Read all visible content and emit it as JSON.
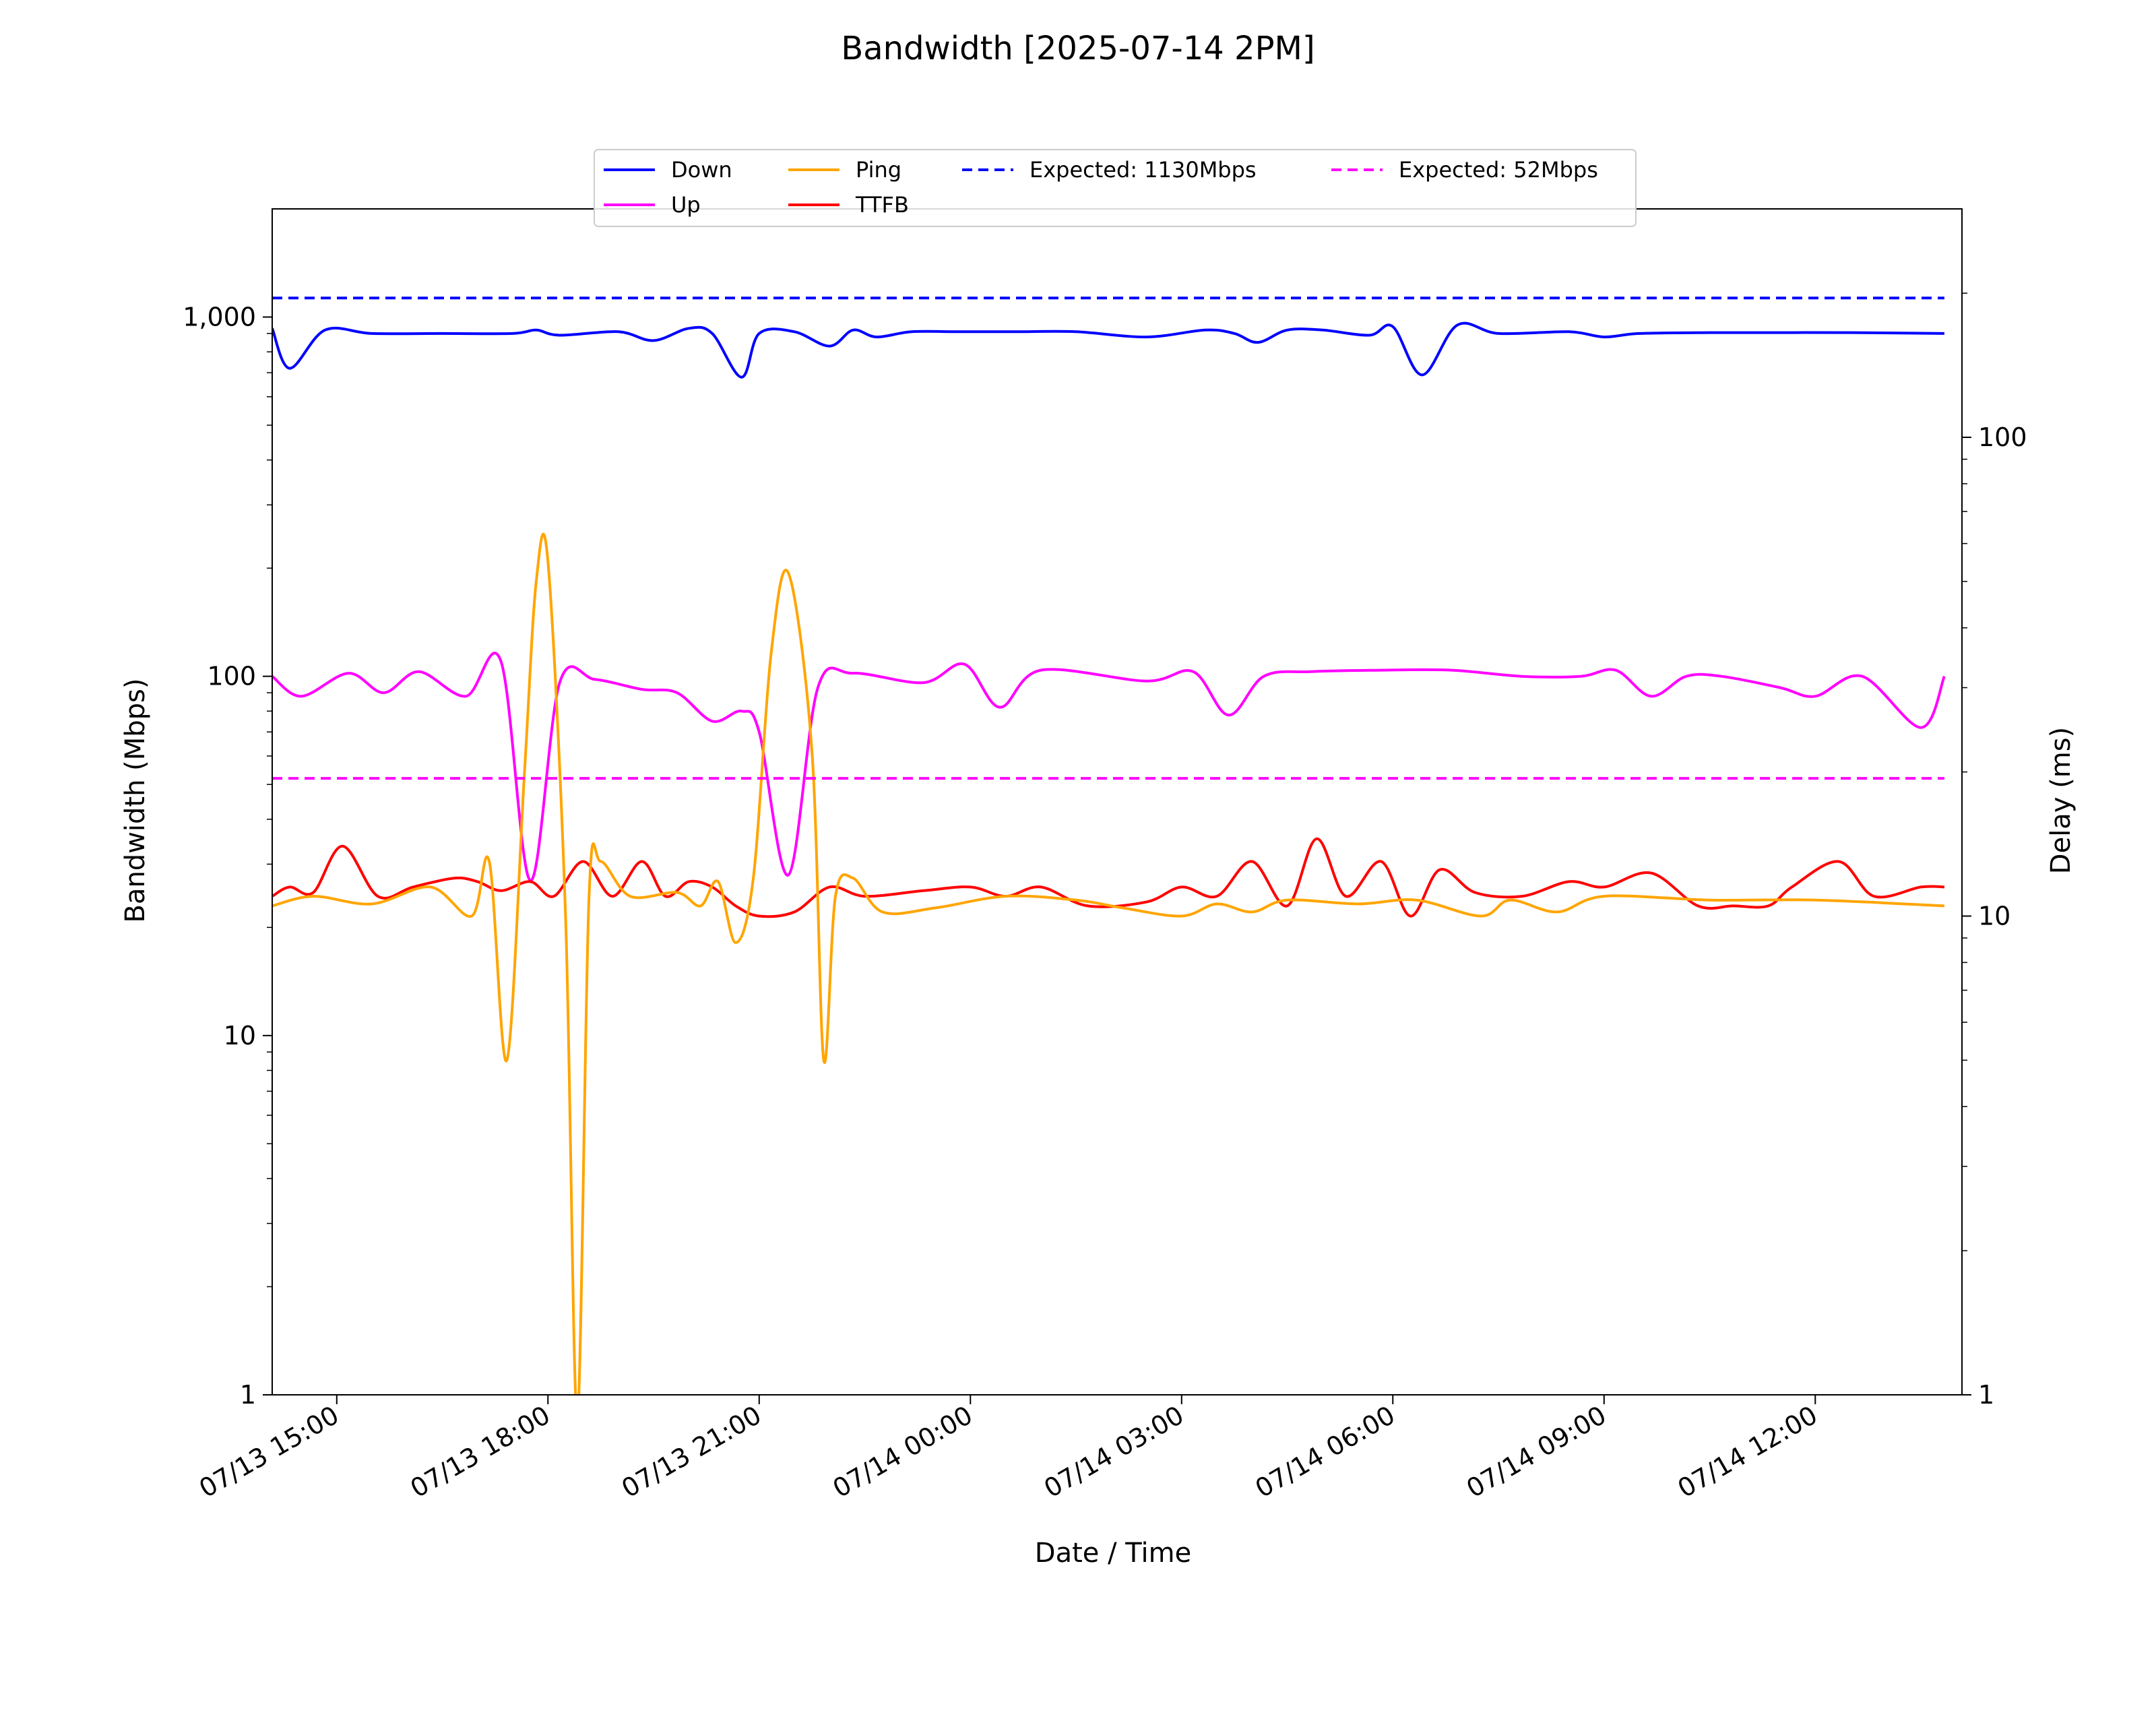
{
  "chart_data": {
    "type": "line",
    "title": "Bandwidth [2025-07-14 2PM]",
    "xlabel": "Date / Time",
    "ylabel": "Bandwidth (Mbps)",
    "y2label": "Delay (ms)",
    "x_ticks": [
      "07/13 15:00",
      "07/13 18:00",
      "07/13 21:00",
      "07/14 00:00",
      "07/14 03:00",
      "07/14 06:00",
      "07/14 09:00",
      "07/14 12:00"
    ],
    "xlim": [
      "2025-07-13 14:05",
      "2025-07-14 14:05"
    ],
    "ylim": [
      1,
      2000
    ],
    "y_scale": "log",
    "y_ticks": [
      {
        "value": 1,
        "label": "1"
      },
      {
        "value": 10,
        "label": "10"
      },
      {
        "value": 100,
        "label": "100"
      },
      {
        "value": 1000,
        "label": "1,000"
      }
    ],
    "y2lim": [
      1,
      300
    ],
    "y2_scale": "log",
    "y2_ticks": [
      {
        "value": 1,
        "label": "1"
      },
      {
        "value": 10,
        "label": "10"
      },
      {
        "value": 100,
        "label": "100"
      }
    ],
    "legend_position": "top-center",
    "series": [
      {
        "name": "Down",
        "axis": "left",
        "color": "#0000ff",
        "style": "solid",
        "x": [
          "07/13 14:05",
          "07/13 14:20",
          "07/13 14:50",
          "07/13 15:30",
          "07/13 16:30",
          "07/13 17:30",
          "07/13 17:50",
          "07/13 18:10",
          "07/13 19:00",
          "07/13 19:30",
          "07/13 20:00",
          "07/13 20:20",
          "07/13 20:45",
          "07/13 21:00",
          "07/13 21:30",
          "07/13 22:00",
          "07/13 22:20",
          "07/13 22:40",
          "07/13 23:10",
          "07/13 23:50",
          "07/14 00:40",
          "07/14 01:30",
          "07/14 02:30",
          "07/14 03:20",
          "07/14 03:45",
          "07/14 04:05",
          "07/14 04:30",
          "07/14 05:00",
          "07/14 05:40",
          "07/14 06:00",
          "07/14 06:25",
          "07/14 06:55",
          "07/14 07:30",
          "07/14 08:30",
          "07/14 09:00",
          "07/14 09:30",
          "07/14 10:30",
          "07/14 11:30",
          "07/14 12:30",
          "07/14 13:50"
        ],
        "values": [
          930,
          720,
          920,
          900,
          900,
          900,
          920,
          890,
          910,
          860,
          930,
          900,
          680,
          900,
          910,
          830,
          920,
          880,
          910,
          910,
          910,
          910,
          880,
          920,
          900,
          850,
          920,
          920,
          890,
          940,
          690,
          950,
          900,
          910,
          880,
          900,
          905,
          905,
          905,
          900
        ]
      },
      {
        "name": "Up",
        "axis": "left",
        "color": "#ff00ff",
        "style": "solid",
        "x": [
          "07/13 14:05",
          "07/13 14:30",
          "07/13 15:10",
          "07/13 15:40",
          "07/13 16:10",
          "07/13 16:50",
          "07/13 17:20",
          "07/13 17:45",
          "07/13 18:10",
          "07/13 18:40",
          "07/13 19:20",
          "07/13 19:50",
          "07/13 20:20",
          "07/13 20:45",
          "07/13 21:00",
          "07/13 21:25",
          "07/13 21:50",
          "07/13 22:20",
          "07/13 23:20",
          "07/13 23:55",
          "07/14 00:25",
          "07/14 01:00",
          "07/14 02:30",
          "07/14 03:10",
          "07/14 03:40",
          "07/14 04:10",
          "07/14 04:50",
          "07/14 05:50",
          "07/14 06:50",
          "07/14 07:50",
          "07/14 08:40",
          "07/14 09:10",
          "07/14 09:40",
          "07/14 10:10",
          "07/14 10:40",
          "07/14 11:30",
          "07/14 12:00",
          "07/14 12:40",
          "07/14 13:30",
          "07/14 13:50"
        ],
        "values": [
          100,
          88,
          102,
          90,
          103,
          88,
          110,
          27,
          96,
          98,
          92,
          90,
          75,
          80,
          70,
          28,
          93,
          102,
          96,
          108,
          82,
          104,
          97,
          103,
          78,
          100,
          103,
          104,
          104,
          100,
          100,
          104,
          88,
          100,
          100,
          93,
          88,
          100,
          72,
          100
        ]
      },
      {
        "name": "Ping",
        "axis": "right",
        "color": "#ffa500",
        "style": "solid",
        "x": [
          "07/13 14:05",
          "07/13 14:40",
          "07/13 15:30",
          "07/13 16:20",
          "07/13 16:55",
          "07/13 17:10",
          "07/13 17:25",
          "07/13 17:40",
          "07/13 17:50",
          "07/13 18:00",
          "07/13 18:15",
          "07/13 18:25",
          "07/13 18:35",
          "07/13 18:45",
          "07/13 19:10",
          "07/13 19:50",
          "07/13 20:10",
          "07/13 20:25",
          "07/13 20:40",
          "07/13 20:55",
          "07/13 21:10",
          "07/13 21:25",
          "07/13 21:45",
          "07/13 21:55",
          "07/13 22:05",
          "07/13 22:20",
          "07/13 22:45",
          "07/13 23:30",
          "07/14 00:30",
          "07/14 01:30",
          "07/14 02:10",
          "07/14 03:00",
          "07/14 03:30",
          "07/14 04:00",
          "07/14 04:30",
          "07/14 05:30",
          "07/14 06:20",
          "07/14 07:15",
          "07/14 07:40",
          "07/14 08:20",
          "07/14 09:00",
          "07/14 10:30",
          "07/14 12:00",
          "07/14 13:50"
        ],
        "values": [
          10.5,
          11,
          10.6,
          11.5,
          10,
          13,
          5,
          20,
          50,
          55,
          10,
          0.9,
          11,
          13,
          11,
          11.2,
          10.5,
          11.8,
          8.8,
          12,
          35,
          52,
          22,
          5,
          11,
          12,
          10.2,
          10.4,
          11,
          10.8,
          10.4,
          10,
          10.6,
          10.2,
          10.8,
          10.6,
          10.8,
          10,
          10.8,
          10.2,
          11,
          10.8,
          10.8,
          10.5
        ]
      },
      {
        "name": "TTFB",
        "axis": "right",
        "color": "#ff0000",
        "style": "solid",
        "x": [
          "07/13 14:05",
          "07/13 14:20",
          "07/13 14:40",
          "07/13 15:05",
          "07/13 15:35",
          "07/13 16:05",
          "07/13 16:40",
          "07/13 17:00",
          "07/13 17:20",
          "07/13 17:45",
          "07/13 18:05",
          "07/13 18:30",
          "07/13 18:55",
          "07/13 19:20",
          "07/13 19:40",
          "07/13 20:00",
          "07/13 20:20",
          "07/13 20:40",
          "07/13 21:00",
          "07/13 21:30",
          "07/13 22:00",
          "07/13 22:30",
          "07/13 23:20",
          "07/14 00:00",
          "07/14 00:30",
          "07/14 01:00",
          "07/14 01:40",
          "07/14 02:30",
          "07/14 03:00",
          "07/14 03:30",
          "07/14 04:00",
          "07/14 04:30",
          "07/14 04:55",
          "07/14 05:20",
          "07/14 05:50",
          "07/14 06:15",
          "07/14 06:40",
          "07/14 07:10",
          "07/14 07:50",
          "07/14 08:30",
          "07/14 09:00",
          "07/14 09:40",
          "07/14 10:20",
          "07/14 10:50",
          "07/14 11:20",
          "07/14 11:40",
          "07/14 12:20",
          "07/14 12:50",
          "07/14 13:30",
          "07/14 13:50"
        ],
        "values": [
          11,
          11.5,
          11.2,
          14,
          11,
          11.5,
          12,
          11.8,
          11.3,
          11.8,
          11,
          13,
          11,
          13,
          11,
          11.8,
          11.5,
          10.5,
          10,
          10.2,
          11.5,
          11,
          11.3,
          11.5,
          11,
          11.5,
          10.5,
          10.7,
          11.5,
          11,
          13,
          10.5,
          14.5,
          11,
          13,
          10,
          12.5,
          11.2,
          11,
          11.8,
          11.5,
          12.3,
          10.5,
          10.5,
          10.5,
          11.5,
          13,
          11,
          11.5,
          11.5
        ]
      },
      {
        "name": "Expected: 1130Mbps",
        "axis": "left",
        "color": "#0000ff",
        "style": "dashed",
        "x": [
          "07/13 14:05",
          "07/14 13:50"
        ],
        "values": [
          1130,
          1130
        ]
      },
      {
        "name": "Expected: 52Mbps",
        "axis": "left",
        "color": "#ff00ff",
        "style": "dashed",
        "x": [
          "07/13 14:05",
          "07/14 13:50"
        ],
        "values": [
          52,
          52
        ]
      }
    ]
  }
}
